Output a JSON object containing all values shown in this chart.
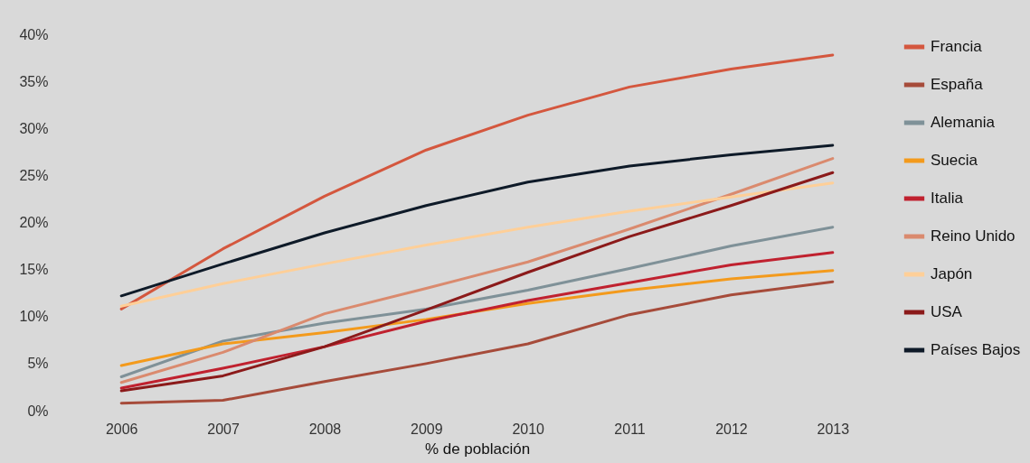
{
  "chart_data": {
    "type": "line",
    "xlabel": "% de población",
    "categories": [
      "2006",
      "2007",
      "2008",
      "2009",
      "2010",
      "2011",
      "2012",
      "2013"
    ],
    "ylim": [
      0,
      40
    ],
    "yticks": [
      {
        "value": 0,
        "label": "0%"
      },
      {
        "value": 5,
        "label": "5%"
      },
      {
        "value": 10,
        "label": "10%"
      },
      {
        "value": 15,
        "label": "15%"
      },
      {
        "value": 20,
        "label": "20%"
      },
      {
        "value": 25,
        "label": "25%"
      },
      {
        "value": 30,
        "label": "30%"
      },
      {
        "value": 35,
        "label": "35%"
      },
      {
        "value": 40,
        "label": "40%"
      }
    ],
    "legend": "right",
    "series": [
      {
        "name": "Francia",
        "color": "#d4573e",
        "values": [
          10.8,
          17.2,
          22.8,
          27.7,
          31.4,
          34.4,
          36.3,
          37.8
        ]
      },
      {
        "name": "España",
        "color": "#a64b3a",
        "values": [
          0.8,
          1.1,
          3.1,
          5.0,
          7.1,
          10.2,
          12.3,
          13.7
        ]
      },
      {
        "name": "Alemania",
        "color": "#7f9198",
        "values": [
          3.6,
          7.4,
          9.3,
          10.8,
          12.8,
          15.1,
          17.5,
          19.5
        ]
      },
      {
        "name": "Suecia",
        "color": "#f39a1c",
        "values": [
          4.8,
          7.1,
          8.3,
          9.7,
          11.4,
          12.8,
          14.0,
          14.9
        ]
      },
      {
        "name": "Italia",
        "color": "#c0212f",
        "values": [
          2.4,
          4.5,
          6.8,
          9.5,
          11.7,
          13.6,
          15.5,
          16.8
        ]
      },
      {
        "name": "Reino Unido",
        "color": "#da8a6e",
        "values": [
          3.0,
          6.2,
          10.3,
          13.0,
          15.8,
          19.3,
          23.0,
          26.8
        ]
      },
      {
        "name": "Japón",
        "color": "#fecf98",
        "values": [
          11.1,
          13.5,
          15.6,
          17.6,
          19.5,
          21.2,
          22.7,
          24.2
        ]
      },
      {
        "name": "USA",
        "color": "#8b1a1a",
        "values": [
          2.1,
          3.7,
          6.8,
          10.7,
          14.7,
          18.5,
          21.8,
          25.3
        ]
      },
      {
        "name": "Países Bajos",
        "color": "#0e1a28",
        "values": [
          12.2,
          15.6,
          18.9,
          21.8,
          24.3,
          26.0,
          27.2,
          28.2
        ]
      }
    ]
  }
}
